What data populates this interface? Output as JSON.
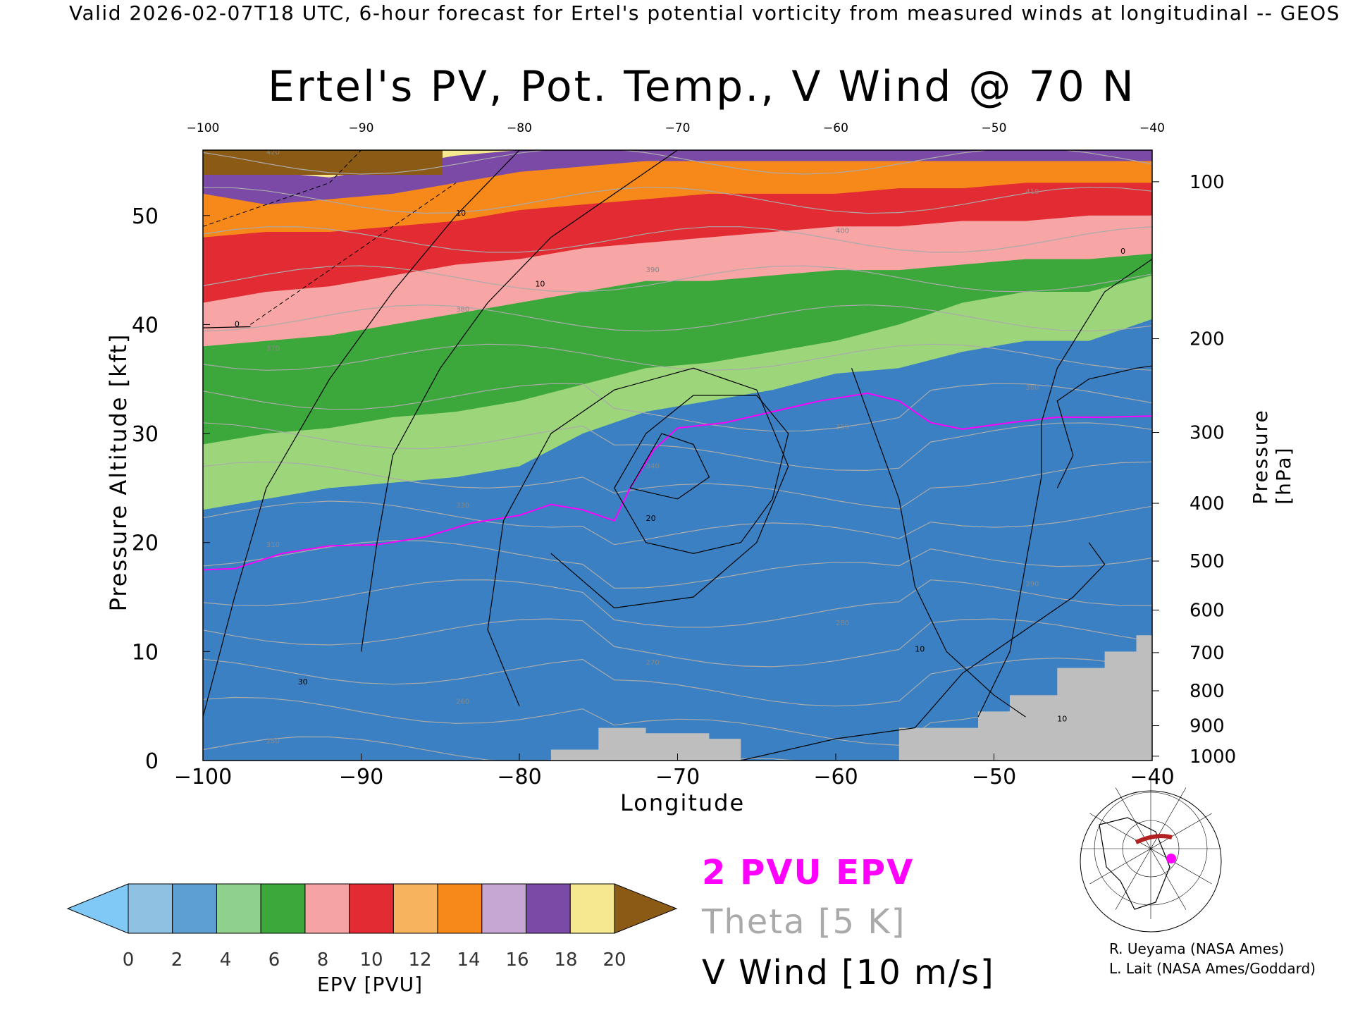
{
  "header": {
    "valid_line": "Valid 2026-02-07T18 UTC, 6-hour forecast for Ertel's potential vorticity from measured winds at longitudinal -- GEOS"
  },
  "chart_data": {
    "type": "heatmap",
    "title": "Ertel's PV, Pot. Temp., V Wind @ 70 N",
    "xlabel": "Longitude",
    "ylabel": "Pressure Altitude [kft]",
    "y2label": "Pressure [hPa]",
    "xlim": [
      -100,
      -40
    ],
    "ylim": [
      0,
      56
    ],
    "x_ticks": [
      -100,
      -90,
      -80,
      -70,
      -60,
      -50,
      -40
    ],
    "x_tick_labels": [
      "−100",
      "−90",
      "−80",
      "−70",
      "−60",
      "−50",
      "−40"
    ],
    "top_ticks": [
      "−100",
      "−90",
      "−80",
      "−70",
      "−60",
      "−50",
      "−40"
    ],
    "y_ticks": [
      0,
      10,
      20,
      30,
      40,
      50
    ],
    "y_tick_labels": [
      "0",
      "10",
      "20",
      "30",
      "40",
      "50"
    ],
    "pressure_ticks": [
      {
        "label": "100",
        "alt_kft": 53.1
      },
      {
        "label": "200",
        "alt_kft": 38.7
      },
      {
        "label": "300",
        "alt_kft": 30.1
      },
      {
        "label": "400",
        "alt_kft": 23.6
      },
      {
        "label": "500",
        "alt_kft": 18.3
      },
      {
        "label": "600",
        "alt_kft": 13.8
      },
      {
        "label": "700",
        "alt_kft": 9.9
      },
      {
        "label": "800",
        "alt_kft": 6.4
      },
      {
        "label": "900",
        "alt_kft": 3.2
      },
      {
        "label": "1000",
        "alt_kft": 0.4
      }
    ],
    "colorbar": {
      "label": "EPV [PVU]",
      "ticks": [
        "0",
        "2",
        "4",
        "6",
        "8",
        "10",
        "12",
        "14",
        "16",
        "18",
        "20"
      ],
      "colors": [
        "#8fc1e3",
        "#5d9fd2",
        "#8fd18c",
        "#3ca83c",
        "#f5a3a3",
        "#e22b32",
        "#f7b35e",
        "#f7891b",
        "#c6a6d2",
        "#7a4aa6",
        "#f5e890"
      ],
      "under_color": "#80c8f5",
      "over_color": "#8b5a14"
    },
    "pv_layers": [
      {
        "color": "#3a80c3",
        "top": [
          17.5,
          18,
          19.5,
          20,
          20.5,
          21.5,
          22,
          24,
          30,
          31,
          32.5,
          33.5,
          33,
          30.5,
          31.5,
          31.5
        ]
      },
      {
        "color": "#9dd67a",
        "top": [
          23,
          24,
          25,
          25.5,
          26,
          27,
          30,
          32,
          33,
          34,
          35.5,
          36,
          37.5,
          38.5,
          38.5,
          40.5
        ]
      },
      {
        "color": "#3ca83c",
        "top": [
          29,
          30,
          30.5,
          31.5,
          32,
          33,
          34.5,
          36,
          36.5,
          37.5,
          38.5,
          40,
          42,
          43,
          43,
          44.5
        ]
      },
      {
        "color": "#f7a5a5",
        "top": [
          38,
          38.5,
          39,
          40,
          41,
          42,
          43,
          44,
          44,
          44.5,
          45,
          45,
          45.5,
          46,
          46,
          46.5
        ]
      },
      {
        "color": "#e22b32",
        "top": [
          42,
          43,
          43.5,
          44.5,
          45.5,
          46,
          47,
          47.5,
          48,
          48.5,
          49,
          49,
          49.5,
          49.5,
          50,
          50
        ]
      },
      {
        "color": "#f7891b",
        "top": [
          48,
          48.5,
          48.5,
          49,
          49.5,
          50.5,
          51,
          51.5,
          52,
          52,
          52,
          52.5,
          52.5,
          53,
          53,
          53
        ]
      },
      {
        "color": "#7a4aa6",
        "top": [
          52,
          51,
          51.5,
          52,
          53,
          54,
          54.5,
          55,
          55,
          55,
          55,
          55,
          55,
          55,
          55,
          55
        ]
      },
      {
        "color": "#f5e890",
        "top": [
          54.5,
          54,
          53.5,
          54.5,
          55.5,
          56,
          56,
          56,
          56,
          56,
          56,
          56,
          56,
          56,
          56,
          56
        ]
      }
    ],
    "pv2_contour": [
      [
        -100,
        17.5
      ],
      [
        -98,
        17.6
      ],
      [
        -95,
        19
      ],
      [
        -92,
        19.7
      ],
      [
        -89,
        19.8
      ],
      [
        -86,
        20.5
      ],
      [
        -83,
        21.8
      ],
      [
        -80,
        22.5
      ],
      [
        -78,
        23.5
      ],
      [
        -76,
        23
      ],
      [
        -74,
        22
      ],
      [
        -73,
        25
      ],
      [
        -71.5,
        28.5
      ],
      [
        -70,
        30.5
      ],
      [
        -67,
        31
      ],
      [
        -64,
        32
      ],
      [
        -61,
        33
      ],
      [
        -58,
        33.7
      ],
      [
        -56,
        33
      ],
      [
        -54,
        31
      ],
      [
        -52,
        30.4
      ],
      [
        -49,
        31
      ],
      [
        -46,
        31.5
      ],
      [
        -43,
        31.5
      ],
      [
        -40,
        31.6
      ]
    ],
    "theta_levels_K": [
      "250",
      "260",
      "270",
      "280",
      "290",
      "310",
      "330",
      "340",
      "350",
      "360",
      "370",
      "380",
      "390",
      "400",
      "410",
      "420"
    ],
    "vwind_contour_labels": [
      "0",
      "10",
      "10",
      "20",
      "30",
      "10",
      "0",
      "10",
      "0"
    ],
    "annotations": [
      "2 PVU EPV",
      "Theta [5 K]",
      "V Wind [10 m/s]"
    ],
    "vwind_color": "#000000",
    "theta_color": "#aaaaaa",
    "pv2_color": "#ff00ff",
    "terrain_color": "#bebebe"
  },
  "legend": {
    "pvu": "2 PVU EPV",
    "theta": "Theta [5 K]",
    "vwind": "V Wind [10 m/s]"
  },
  "credits": {
    "line1": "R. Ueyama (NASA Ames)",
    "line2": "L. Lait (NASA Ames/Goddard)"
  }
}
